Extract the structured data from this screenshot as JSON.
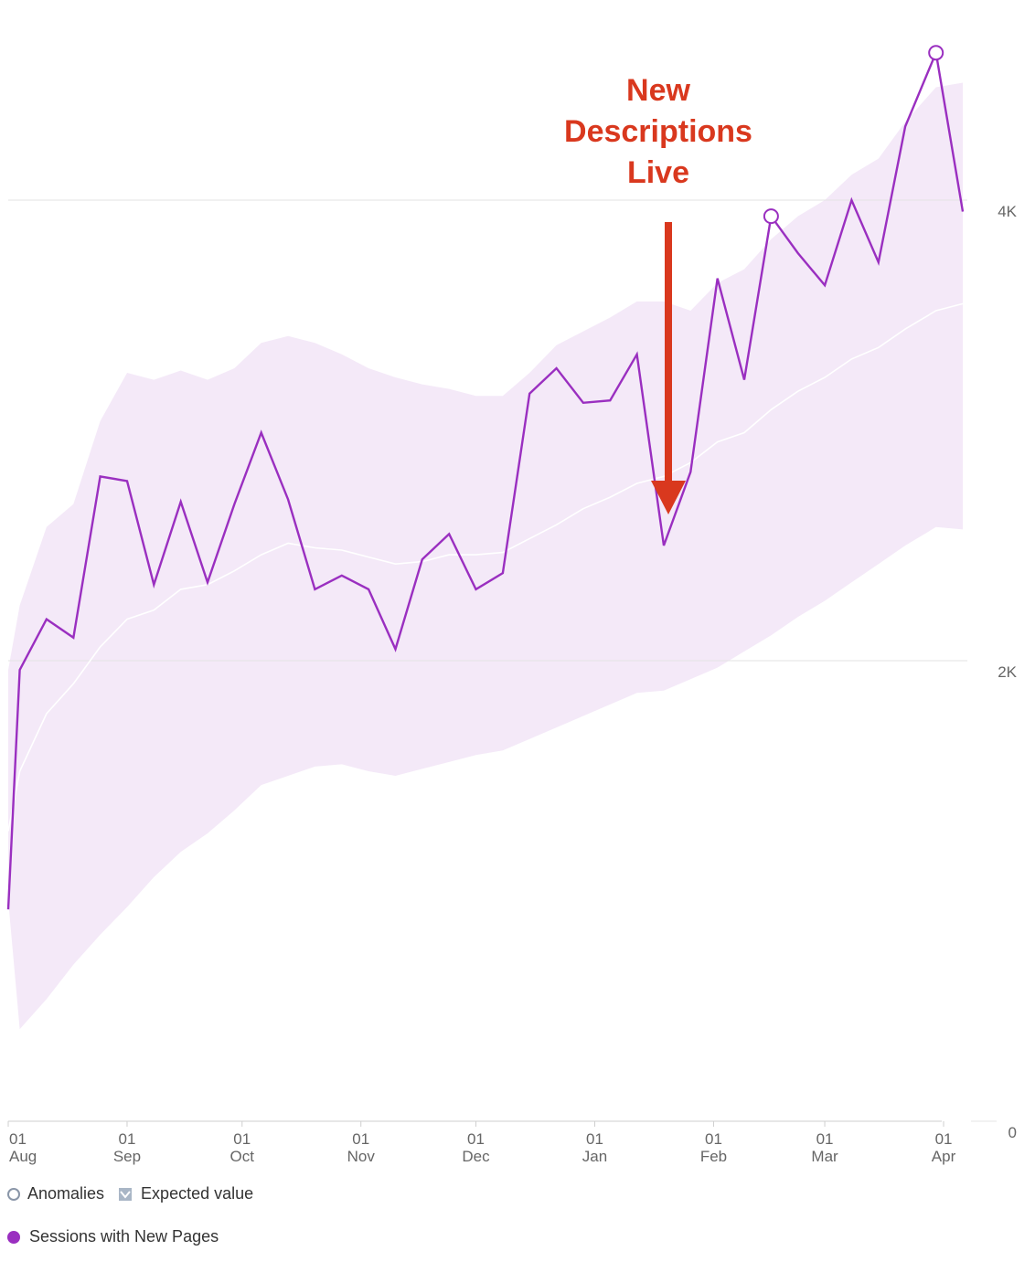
{
  "chart_data": {
    "type": "line",
    "y_ticks": [
      {
        "value": 0,
        "label": "0"
      },
      {
        "value": 2000,
        "label": "2K"
      },
      {
        "value": 4000,
        "label": "4K"
      }
    ],
    "ylim": [
      0,
      4800
    ],
    "x_domain": [
      "2023-08-01",
      "2024-04-06"
    ],
    "x_ticks": [
      {
        "date": "2023-08-01",
        "day": "01",
        "month": "Aug"
      },
      {
        "date": "2023-09-01",
        "day": "01",
        "month": "Sep"
      },
      {
        "date": "2023-10-01",
        "day": "01",
        "month": "Oct"
      },
      {
        "date": "2023-11-01",
        "day": "01",
        "month": "Nov"
      },
      {
        "date": "2023-12-01",
        "day": "01",
        "month": "Dec"
      },
      {
        "date": "2024-01-01",
        "day": "01",
        "month": "Jan"
      },
      {
        "date": "2024-02-01",
        "day": "01",
        "month": "Feb"
      },
      {
        "date": "2024-03-01",
        "day": "01",
        "month": "Mar"
      },
      {
        "date": "2024-04-01",
        "day": "01",
        "month": "Apr"
      }
    ],
    "series": [
      {
        "name": "Sessions with New Pages",
        "color": "#9a2fc0",
        "points": [
          [
            "2023-08-01",
            920
          ],
          [
            "2023-08-04",
            1960
          ],
          [
            "2023-08-11",
            2180
          ],
          [
            "2023-08-18",
            2100
          ],
          [
            "2023-08-25",
            2800
          ],
          [
            "2023-09-01",
            2780
          ],
          [
            "2023-09-08",
            2330
          ],
          [
            "2023-09-15",
            2690
          ],
          [
            "2023-09-22",
            2340
          ],
          [
            "2023-09-29",
            2680
          ],
          [
            "2023-10-06",
            2990
          ],
          [
            "2023-10-13",
            2700
          ],
          [
            "2023-10-20",
            2310
          ],
          [
            "2023-10-27",
            2370
          ],
          [
            "2023-11-03",
            2310
          ],
          [
            "2023-11-10",
            2050
          ],
          [
            "2023-11-17",
            2440
          ],
          [
            "2023-11-24",
            2550
          ],
          [
            "2023-12-01",
            2310
          ],
          [
            "2023-12-08",
            2380
          ],
          [
            "2023-12-15",
            3160
          ],
          [
            "2023-12-22",
            3270
          ],
          [
            "2023-12-29",
            3120
          ],
          [
            "2024-01-05",
            3130
          ],
          [
            "2024-01-12",
            3330
          ],
          [
            "2024-01-19",
            2500
          ],
          [
            "2024-01-26",
            2820
          ],
          [
            "2024-02-02",
            3660
          ],
          [
            "2024-02-09",
            3220
          ],
          [
            "2024-02-16",
            3930
          ],
          [
            "2024-02-23",
            3770
          ],
          [
            "2024-03-01",
            3630
          ],
          [
            "2024-03-08",
            4000
          ],
          [
            "2024-03-15",
            3730
          ],
          [
            "2024-03-22",
            4320
          ],
          [
            "2024-03-30",
            4640
          ],
          [
            "2024-04-06",
            3950
          ]
        ]
      },
      {
        "name": "Expected value",
        "color": "#ffffff",
        "points": [
          [
            "2023-08-01",
            1260
          ],
          [
            "2023-08-04",
            1520
          ],
          [
            "2023-08-11",
            1770
          ],
          [
            "2023-08-18",
            1900
          ],
          [
            "2023-08-25",
            2060
          ],
          [
            "2023-09-01",
            2180
          ],
          [
            "2023-09-08",
            2220
          ],
          [
            "2023-09-15",
            2310
          ],
          [
            "2023-09-22",
            2330
          ],
          [
            "2023-09-29",
            2390
          ],
          [
            "2023-10-06",
            2460
          ],
          [
            "2023-10-13",
            2510
          ],
          [
            "2023-10-20",
            2490
          ],
          [
            "2023-10-27",
            2480
          ],
          [
            "2023-11-03",
            2450
          ],
          [
            "2023-11-10",
            2420
          ],
          [
            "2023-11-17",
            2430
          ],
          [
            "2023-11-24",
            2460
          ],
          [
            "2023-12-01",
            2460
          ],
          [
            "2023-12-08",
            2470
          ],
          [
            "2023-12-15",
            2530
          ],
          [
            "2023-12-22",
            2590
          ],
          [
            "2023-12-29",
            2660
          ],
          [
            "2024-01-05",
            2710
          ],
          [
            "2024-01-12",
            2770
          ],
          [
            "2024-01-19",
            2800
          ],
          [
            "2024-01-26",
            2860
          ],
          [
            "2024-02-02",
            2950
          ],
          [
            "2024-02-09",
            2990
          ],
          [
            "2024-02-16",
            3090
          ],
          [
            "2024-02-23",
            3170
          ],
          [
            "2024-03-01",
            3230
          ],
          [
            "2024-03-08",
            3310
          ],
          [
            "2024-03-15",
            3360
          ],
          [
            "2024-03-22",
            3440
          ],
          [
            "2024-03-30",
            3520
          ],
          [
            "2024-04-06",
            3550
          ]
        ]
      }
    ],
    "expected_range": {
      "color": "#f4e9f8",
      "upper": [
        [
          "2023-08-01",
          1960
        ],
        [
          "2023-08-04",
          2240
        ],
        [
          "2023-08-11",
          2580
        ],
        [
          "2023-08-18",
          2680
        ],
        [
          "2023-08-25",
          3040
        ],
        [
          "2023-09-01",
          3250
        ],
        [
          "2023-09-08",
          3220
        ],
        [
          "2023-09-15",
          3260
        ],
        [
          "2023-09-22",
          3220
        ],
        [
          "2023-09-29",
          3270
        ],
        [
          "2023-10-06",
          3380
        ],
        [
          "2023-10-13",
          3410
        ],
        [
          "2023-10-20",
          3380
        ],
        [
          "2023-10-27",
          3330
        ],
        [
          "2023-11-03",
          3270
        ],
        [
          "2023-11-10",
          3230
        ],
        [
          "2023-11-17",
          3200
        ],
        [
          "2023-11-24",
          3180
        ],
        [
          "2023-12-01",
          3150
        ],
        [
          "2023-12-08",
          3150
        ],
        [
          "2023-12-15",
          3250
        ],
        [
          "2023-12-22",
          3370
        ],
        [
          "2023-12-29",
          3430
        ],
        [
          "2024-01-05",
          3490
        ],
        [
          "2024-01-12",
          3560
        ],
        [
          "2024-01-19",
          3560
        ],
        [
          "2024-01-26",
          3520
        ],
        [
          "2024-02-02",
          3640
        ],
        [
          "2024-02-09",
          3700
        ],
        [
          "2024-02-16",
          3830
        ],
        [
          "2024-02-23",
          3930
        ],
        [
          "2024-03-01",
          4000
        ],
        [
          "2024-03-08",
          4110
        ],
        [
          "2024-03-15",
          4180
        ],
        [
          "2024-03-22",
          4340
        ],
        [
          "2024-03-30",
          4490
        ],
        [
          "2024-04-06",
          4510
        ]
      ],
      "lower": [
        [
          "2023-08-01",
          960
        ],
        [
          "2023-08-04",
          400
        ],
        [
          "2023-08-11",
          530
        ],
        [
          "2023-08-18",
          680
        ],
        [
          "2023-08-25",
          810
        ],
        [
          "2023-09-01",
          930
        ],
        [
          "2023-09-08",
          1060
        ],
        [
          "2023-09-15",
          1170
        ],
        [
          "2023-09-22",
          1250
        ],
        [
          "2023-09-29",
          1350
        ],
        [
          "2023-10-06",
          1460
        ],
        [
          "2023-10-13",
          1500
        ],
        [
          "2023-10-20",
          1540
        ],
        [
          "2023-10-27",
          1550
        ],
        [
          "2023-11-03",
          1520
        ],
        [
          "2023-11-10",
          1500
        ],
        [
          "2023-11-17",
          1530
        ],
        [
          "2023-11-24",
          1560
        ],
        [
          "2023-12-01",
          1590
        ],
        [
          "2023-12-08",
          1610
        ],
        [
          "2023-12-15",
          1660
        ],
        [
          "2023-12-22",
          1710
        ],
        [
          "2023-12-29",
          1760
        ],
        [
          "2024-01-05",
          1810
        ],
        [
          "2024-01-12",
          1860
        ],
        [
          "2024-01-19",
          1870
        ],
        [
          "2024-01-26",
          1920
        ],
        [
          "2024-02-02",
          1970
        ],
        [
          "2024-02-09",
          2040
        ],
        [
          "2024-02-16",
          2110
        ],
        [
          "2024-02-23",
          2190
        ],
        [
          "2024-03-01",
          2260
        ],
        [
          "2024-03-08",
          2340
        ],
        [
          "2024-03-15",
          2420
        ],
        [
          "2024-03-22",
          2500
        ],
        [
          "2024-03-30",
          2580
        ],
        [
          "2024-04-06",
          2570
        ]
      ]
    },
    "anomalies": [
      [
        "2024-02-16",
        3930
      ],
      [
        "2024-03-30",
        4640
      ]
    ],
    "annotation": {
      "lines": [
        "New",
        "Descriptions",
        "Live"
      ],
      "date": "2024-01-19",
      "color": "#d9381e"
    },
    "grid": true,
    "y_axis_position": "right",
    "legend_position": "bottom-left"
  },
  "legend": {
    "anomalies_label": "Anomalies",
    "expected_label": "Expected value",
    "series_label": "Sessions with New Pages"
  }
}
